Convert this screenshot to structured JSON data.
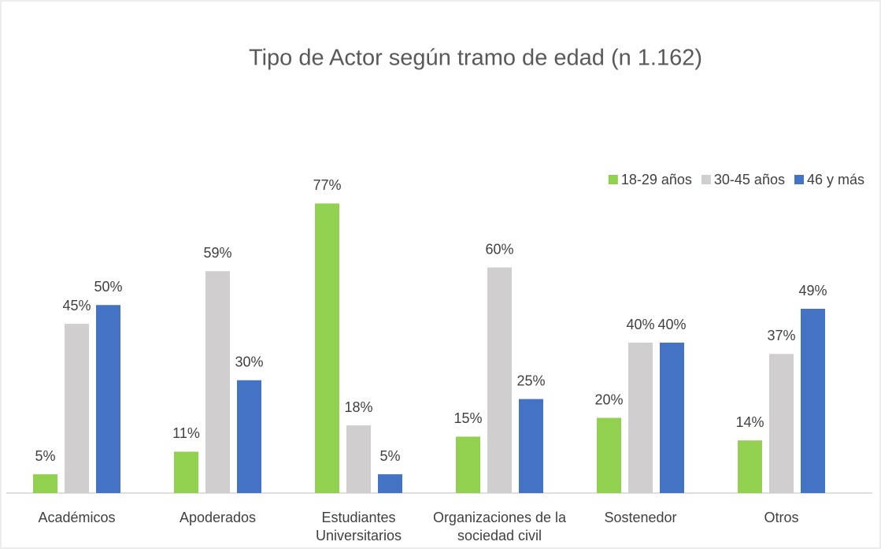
{
  "chart_data": {
    "type": "bar",
    "title": "Tipo de Actor según tramo de edad (n 1.162)",
    "categories": [
      "Académicos",
      "Apoderados",
      "Estudiantes Universitarios",
      "Organizaciones de la sociedad civil",
      "Sostenedor",
      "Otros"
    ],
    "series": [
      {
        "name": "18-29 años",
        "color": "#92d050",
        "values": [
          5,
          11,
          77,
          15,
          20,
          14
        ],
        "value_labels": [
          "5%",
          "11%",
          "77%",
          "15%",
          "20%",
          "14%"
        ]
      },
      {
        "name": "30-45 años",
        "color": "#d0cece",
        "values": [
          45,
          59,
          18,
          60,
          40,
          37
        ],
        "value_labels": [
          "45%",
          "59%",
          "18%",
          "60%",
          "40%",
          "37%"
        ]
      },
      {
        "name": "46 y más",
        "color": "#4472c4",
        "values": [
          50,
          30,
          5,
          25,
          40,
          49
        ],
        "value_labels": [
          "50%",
          "30%",
          "5%",
          "25%",
          "40%",
          "49%"
        ]
      }
    ],
    "ylim": [
      0,
      80
    ],
    "legend": "top-right"
  }
}
